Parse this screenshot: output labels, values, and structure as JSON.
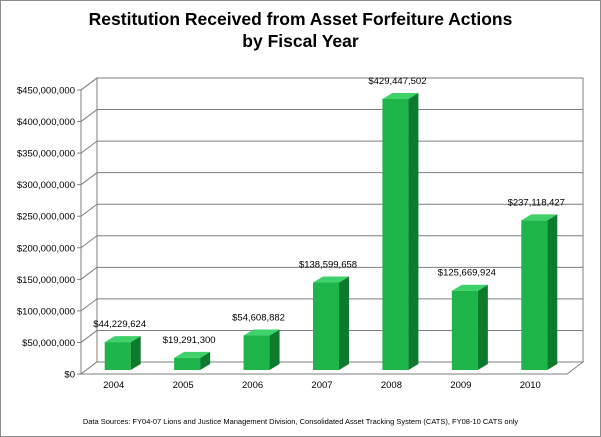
{
  "chart_data": {
    "type": "bar",
    "title_line1": "Restitution Received from Asset Forfeiture Actions",
    "title_line2": "by Fiscal Year",
    "categories": [
      "2004",
      "2005",
      "2006",
      "2007",
      "2008",
      "2009",
      "2010"
    ],
    "values": [
      44229624,
      19291300,
      54608882,
      138599658,
      429447502,
      125669924,
      237118427
    ],
    "data_labels": [
      "$44,229,624",
      "$19,291,300",
      "$54,608,882",
      "$138,599,658",
      "$429,447,502",
      "$125,669,924",
      "$237,118,427"
    ],
    "y_ticks": [
      0,
      50000000,
      100000000,
      150000000,
      200000000,
      250000000,
      300000000,
      350000000,
      400000000,
      450000000
    ],
    "y_tick_labels": [
      "$0",
      "$50,000,000",
      "$100,000,000",
      "$150,000,000",
      "$200,000,000",
      "$250,000,000",
      "$300,000,000",
      "$350,000,000",
      "$400,000,000",
      "$450,000,000"
    ],
    "ylim": [
      0,
      450000000
    ],
    "grid": true,
    "legend": "none",
    "bar_color": "#1db44a",
    "bar_side_color": "#0e7a2e",
    "bar_top_color": "#3fd16a",
    "source_note": "Data Sources: FY04-07 Lions and Justice Management Division, Consolidated Asset Tracking System (CATS), FY08-10 CATS only"
  }
}
